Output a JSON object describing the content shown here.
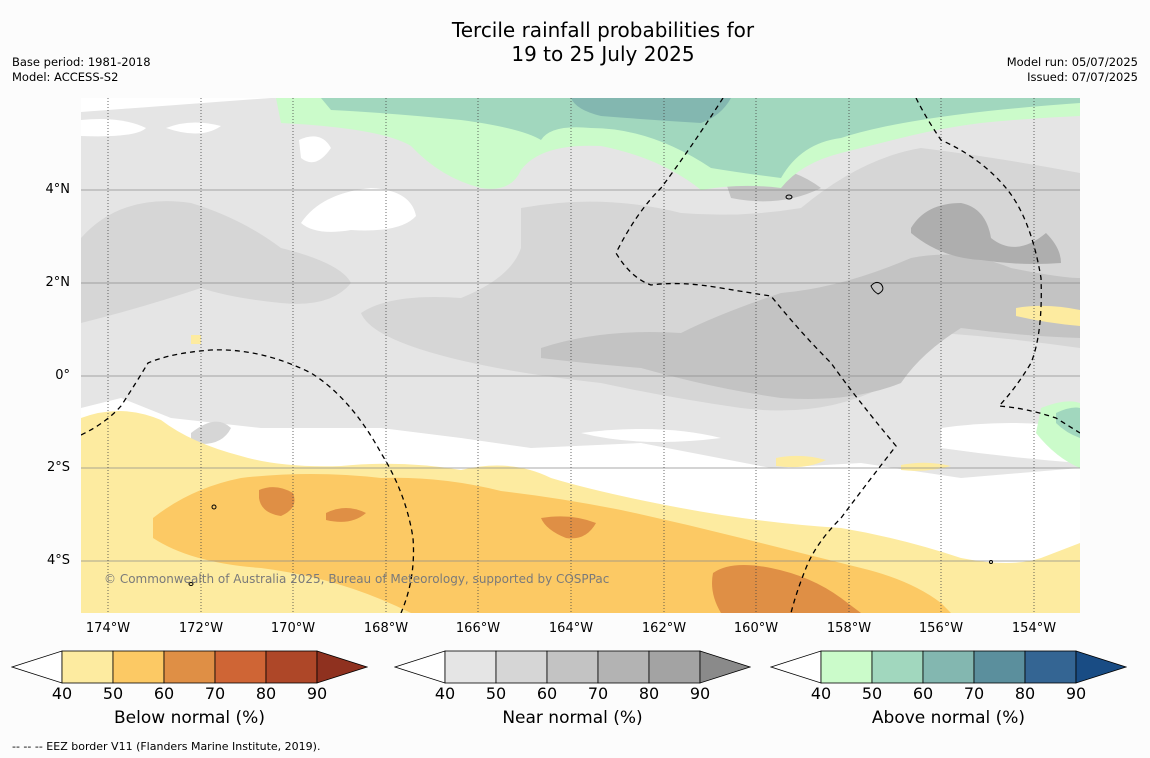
{
  "title_line1": "Tercile rainfall probabilities for",
  "title_line2": "19 to 25 July 2025",
  "base_period": "Base period: 1981-2018",
  "model": "Model: ACCESS-S2",
  "model_run": "Model run: 05/07/2025",
  "issued": "Issued: 07/07/2025",
  "copyright": "© Commonwealth of Australia 2025, Bureau of Meteorology, supported by COSPPac",
  "footnote": "--  --  -- EEZ border V11 (Flanders Marine Institute, 2019).",
  "lat_labels": [
    "4°N",
    "2°N",
    "0°",
    "2°S",
    "4°S"
  ],
  "lon_labels": [
    "174°W",
    "172°W",
    "170°W",
    "168°W",
    "166°W",
    "164°W",
    "162°W",
    "160°W",
    "158°W",
    "156°W",
    "154°W"
  ],
  "colorbars": [
    {
      "title": "Below normal (%)",
      "ticks": [
        "40",
        "50",
        "60",
        "70",
        "80",
        "90"
      ],
      "colors": [
        "#fdeba0",
        "#fcc964",
        "#df8f45",
        "#cf6535",
        "#ae4728",
        "#8f311f"
      ]
    },
    {
      "title": "Near normal (%)",
      "ticks": [
        "40",
        "50",
        "60",
        "70",
        "80",
        "90"
      ],
      "colors": [
        "#e5e5e5",
        "#d6d6d6",
        "#c3c3c3",
        "#b3b3b3",
        "#a3a3a3",
        "#8a8a8a"
      ]
    },
    {
      "title": "Above normal (%)",
      "ticks": [
        "40",
        "50",
        "60",
        "70",
        "80",
        "90"
      ],
      "colors": [
        "#cbfbca",
        "#a1d7be",
        "#83b7b0",
        "#5b8f9d",
        "#346593",
        "#194c84"
      ]
    }
  ]
}
